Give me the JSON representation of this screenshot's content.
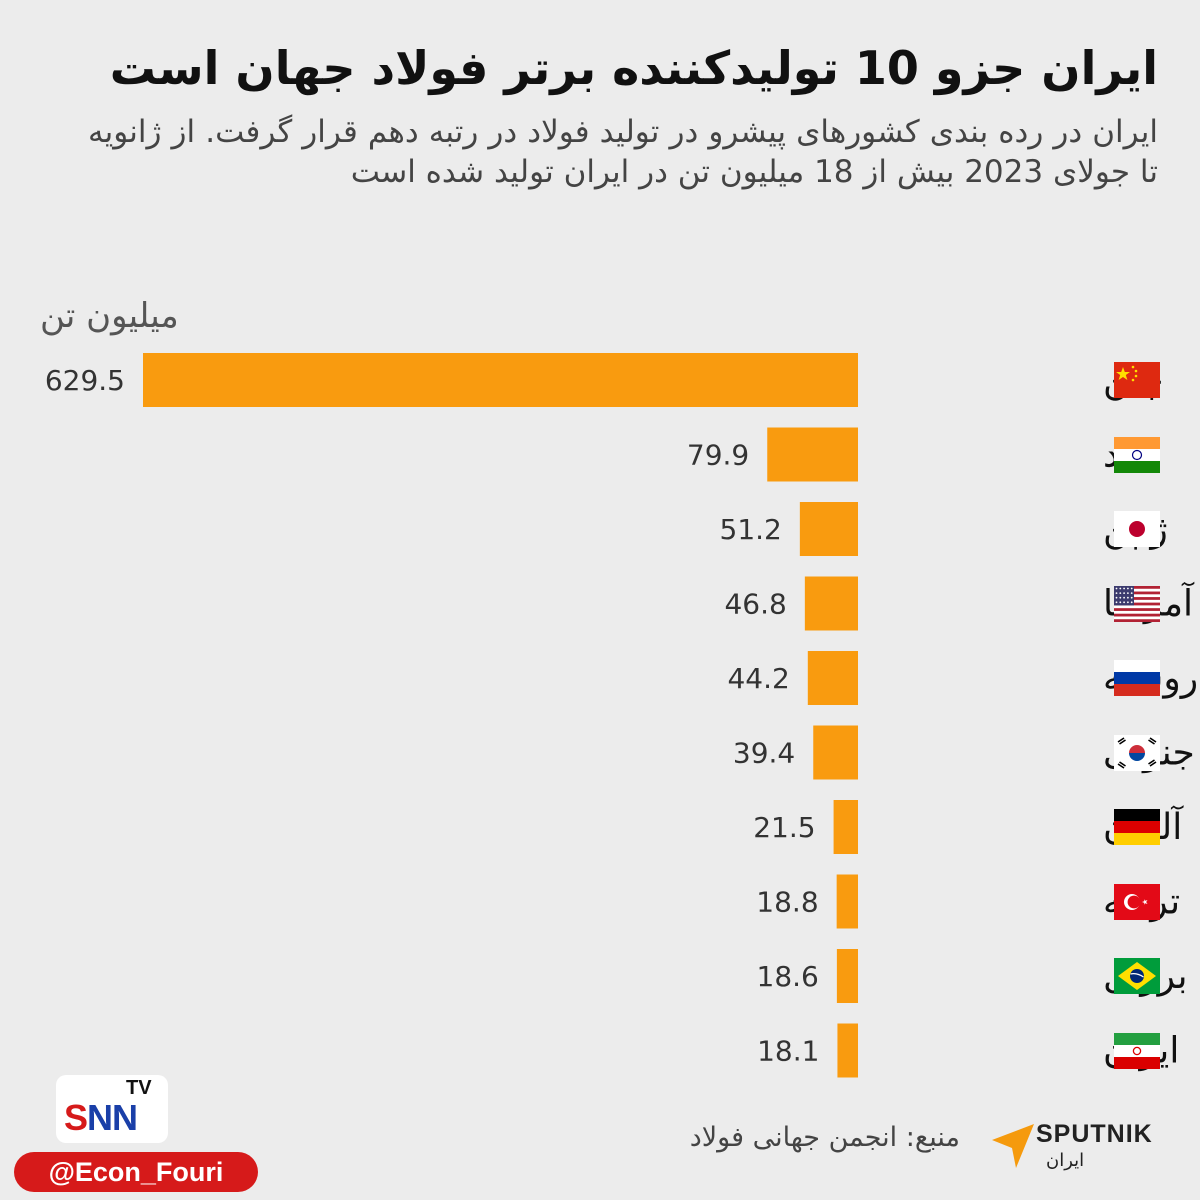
{
  "header": {
    "title": "ایران جزو 10 تولیدکننده برتر فولاد جهان است",
    "subtitle": "ایران در رده بندی کشورهای پیشرو در تولید فولاد در رتبه دهم قرار گرفت. از ژانویه تا جولای 2023 بیش از 18 میلیون تن در ایران تولید شده است"
  },
  "chart_data": {
    "type": "bar",
    "orientation": "horizontal",
    "unit_label": "میلیون تن",
    "categories": [
      "چین",
      "هند",
      "ژاپن",
      "آمریکا",
      "روسیه",
      "کره جنوبی",
      "آلمان",
      "ترکیه",
      "برزیل",
      "ایران"
    ],
    "values": [
      629.5,
      79.9,
      51.2,
      46.8,
      44.2,
      39.4,
      21.5,
      18.8,
      18.6,
      18.1
    ],
    "value_labels": [
      "629.5",
      "79.9",
      "51.2",
      "46.8",
      "44.2",
      "39.4",
      "21.5",
      "18.8",
      "18.6",
      "18.1"
    ],
    "flags": [
      "china-flag-icon",
      "india-flag-icon",
      "japan-flag-icon",
      "usa-flag-icon",
      "russia-flag-icon",
      "south-korea-flag-icon",
      "germany-flag-icon",
      "turkey-flag-icon",
      "brazil-flag-icon",
      "iran-flag-icon"
    ],
    "bar_color": "#f99b0f",
    "grid": false
  },
  "footer": {
    "source": "منبع: انجمن جهانی فولاد",
    "brand_name": "SPUTNIK",
    "brand_sub": "ایران",
    "snn_logo": "SNN",
    "snn_tv": "TV",
    "handle": "@Econ_Fouri"
  }
}
